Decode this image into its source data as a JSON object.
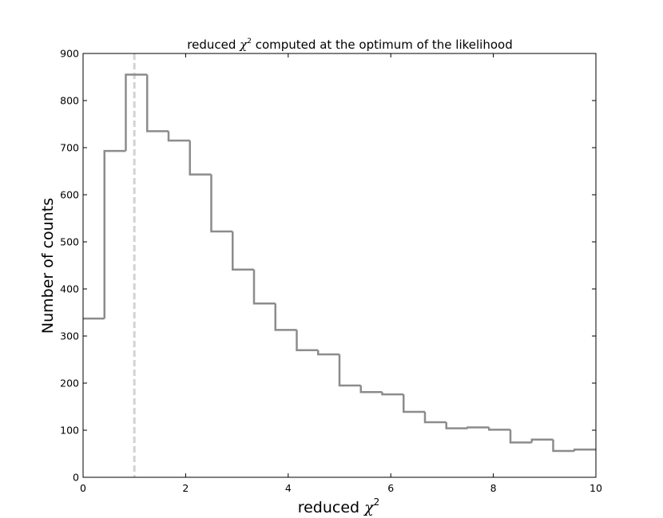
{
  "chart_data": {
    "type": "histogram",
    "title": {
      "prefix": "reduced ",
      "symbol": "χ",
      "superscript": "2",
      "suffix": "  computed at the optimum of the likelihood"
    },
    "xlabel": {
      "prefix": "reduced ",
      "symbol": "χ",
      "superscript": "2"
    },
    "ylabel": "Number of counts",
    "xlim": [
      0,
      10
    ],
    "ylim": [
      0,
      900
    ],
    "x_ticks": [
      0,
      2,
      4,
      6,
      8,
      10
    ],
    "y_ticks": [
      0,
      100,
      200,
      300,
      400,
      500,
      600,
      700,
      800,
      900
    ],
    "bin_edges": [
      0,
      0.4167,
      0.8333,
      1.25,
      1.6667,
      2.0833,
      2.5,
      2.9167,
      3.3333,
      3.75,
      4.1667,
      4.5833,
      5.0,
      5.4167,
      5.8333,
      6.25,
      6.6667,
      7.0833,
      7.5,
      7.9167,
      8.3333,
      8.75,
      9.1667,
      9.5833,
      10.0
    ],
    "counts": [
      337,
      693,
      855,
      735,
      715,
      643,
      522,
      441,
      369,
      313,
      270,
      261,
      195,
      181,
      176,
      139,
      117,
      104,
      106,
      101,
      74,
      80,
      56,
      59
    ],
    "reference_line_x": 1,
    "colors": {
      "histogram": "#8c8c8c",
      "reference_line": "#d3d3d3",
      "axes": "#000000"
    },
    "grid": false
  }
}
